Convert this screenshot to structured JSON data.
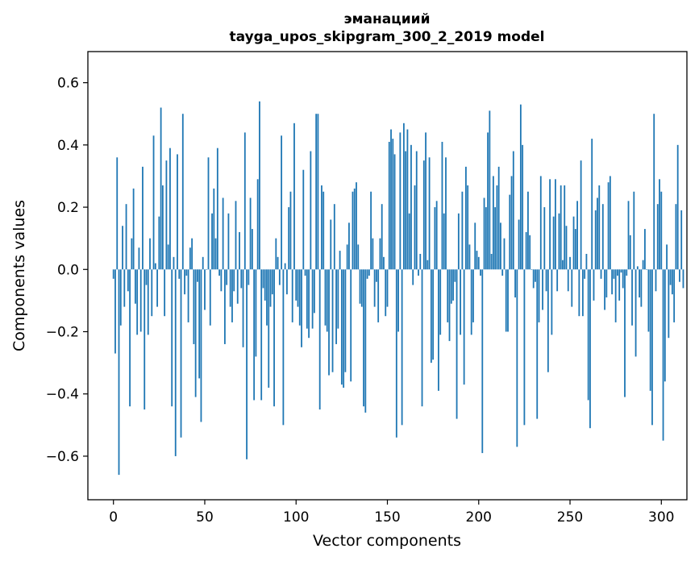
{
  "chart_data": {
    "type": "bar",
    "title": "эманациий",
    "subtitle": "tayga_upos_skipgram_300_2_2019 model",
    "xlabel": "Vector components",
    "ylabel": "Components values",
    "xlim": [
      -14,
      314
    ],
    "ylim": [
      -0.74,
      0.7
    ],
    "xticks": [
      0,
      50,
      100,
      150,
      200,
      250,
      300
    ],
    "xtick_labels": [
      "0",
      "50",
      "100",
      "150",
      "200",
      "250",
      "300"
    ],
    "yticks": [
      -0.6,
      -0.4,
      -0.2,
      0.0,
      0.2,
      0.4,
      0.6
    ],
    "ytick_labels": [
      "−0.6",
      "−0.4",
      "−0.2",
      "0.0",
      "0.2",
      "0.4",
      "0.6"
    ],
    "bar_color": "#1f77b4",
    "grid": false,
    "values": [
      -0.03,
      -0.27,
      0.36,
      -0.66,
      -0.18,
      0.14,
      -0.12,
      0.21,
      -0.07,
      -0.44,
      0.1,
      0.26,
      -0.11,
      -0.21,
      0.07,
      -0.2,
      0.33,
      -0.45,
      -0.05,
      -0.21,
      0.1,
      -0.15,
      0.43,
      0.02,
      -0.12,
      0.17,
      0.52,
      0.27,
      -0.15,
      0.35,
      0.08,
      0.39,
      -0.44,
      0.04,
      -0.6,
      0.37,
      -0.03,
      -0.54,
      0.5,
      -0.08,
      -0.02,
      -0.17,
      0.07,
      0.1,
      -0.24,
      -0.41,
      -0.04,
      -0.35,
      -0.49,
      0.04,
      -0.13,
      0.0,
      0.36,
      -0.18,
      0.18,
      0.26,
      0.1,
      0.39,
      -0.02,
      -0.07,
      0.23,
      -0.24,
      -0.05,
      0.18,
      -0.12,
      -0.17,
      -0.07,
      0.22,
      -0.11,
      0.12,
      -0.06,
      -0.25,
      0.44,
      -0.61,
      -0.05,
      0.23,
      0.13,
      -0.42,
      -0.28,
      0.29,
      0.54,
      -0.42,
      -0.06,
      -0.1,
      -0.18,
      -0.38,
      -0.12,
      -0.08,
      -0.44,
      0.1,
      0.04,
      -0.05,
      0.43,
      -0.5,
      0.02,
      -0.08,
      0.2,
      0.25,
      -0.17,
      0.47,
      -0.1,
      -0.12,
      -0.18,
      -0.25,
      0.32,
      -0.02,
      -0.19,
      -0.22,
      0.38,
      -0.19,
      -0.14,
      0.5,
      0.5,
      -0.45,
      0.27,
      0.25,
      -0.18,
      -0.2,
      -0.34,
      0.16,
      -0.33,
      0.21,
      -0.24,
      -0.19,
      0.06,
      -0.37,
      -0.38,
      -0.33,
      0.08,
      0.15,
      -0.36,
      0.25,
      0.26,
      0.28,
      0.08,
      -0.11,
      -0.12,
      -0.44,
      -0.46,
      -0.03,
      -0.02,
      0.25,
      0.1,
      -0.12,
      -0.04,
      -0.17,
      0.1,
      0.21,
      0.04,
      -0.15,
      -0.12,
      0.41,
      0.45,
      0.42,
      0.37,
      -0.54,
      -0.2,
      0.44,
      -0.5,
      0.47,
      0.38,
      0.45,
      0.18,
      0.4,
      -0.05,
      0.27,
      0.38,
      -0.02,
      0.05,
      -0.44,
      0.35,
      0.44,
      0.03,
      0.36,
      -0.3,
      -0.29,
      0.2,
      0.22,
      -0.39,
      -0.21,
      0.41,
      0.18,
      0.36,
      -0.17,
      -0.23,
      -0.11,
      -0.1,
      -0.04,
      -0.48,
      0.18,
      -0.21,
      0.25,
      -0.37,
      0.33,
      0.27,
      0.08,
      -0.21,
      -0.17,
      0.15,
      0.06,
      0.04,
      -0.02,
      -0.59,
      0.23,
      0.2,
      0.44,
      0.51,
      0.05,
      0.3,
      0.2,
      0.27,
      0.33,
      0.15,
      -0.02,
      0.1,
      -0.2,
      -0.2,
      0.24,
      0.3,
      0.38,
      -0.09,
      -0.57,
      0.16,
      0.53,
      0.4,
      -0.5,
      0.12,
      0.25,
      0.11,
      0.0,
      -0.06,
      -0.04,
      -0.48,
      -0.17,
      0.3,
      -0.13,
      0.2,
      -0.07,
      -0.33,
      0.29,
      -0.21,
      0.17,
      0.29,
      -0.07,
      0.18,
      0.27,
      0.03,
      0.27,
      0.14,
      -0.07,
      0.04,
      -0.12,
      0.17,
      0.13,
      0.22,
      -0.15,
      0.35,
      -0.15,
      -0.03,
      0.05,
      -0.42,
      -0.51,
      0.42,
      -0.1,
      0.19,
      0.23,
      0.27,
      -0.03,
      0.21,
      -0.13,
      -0.09,
      0.28,
      0.3,
      -0.08,
      -0.03,
      -0.17,
      -0.02,
      -0.1,
      -0.01,
      -0.06,
      -0.41,
      -0.02,
      0.22,
      0.11,
      -0.18,
      0.25,
      -0.28,
      0.01,
      -0.09,
      -0.12,
      0.03,
      0.13,
      0.0,
      -0.2,
      -0.39,
      -0.5,
      0.5,
      -0.07,
      0.21,
      0.29,
      0.25,
      -0.55,
      -0.36,
      0.08,
      -0.22,
      -0.05,
      -0.08,
      -0.17,
      0.21,
      0.4,
      -0.04,
      0.19,
      -0.06
    ]
  }
}
